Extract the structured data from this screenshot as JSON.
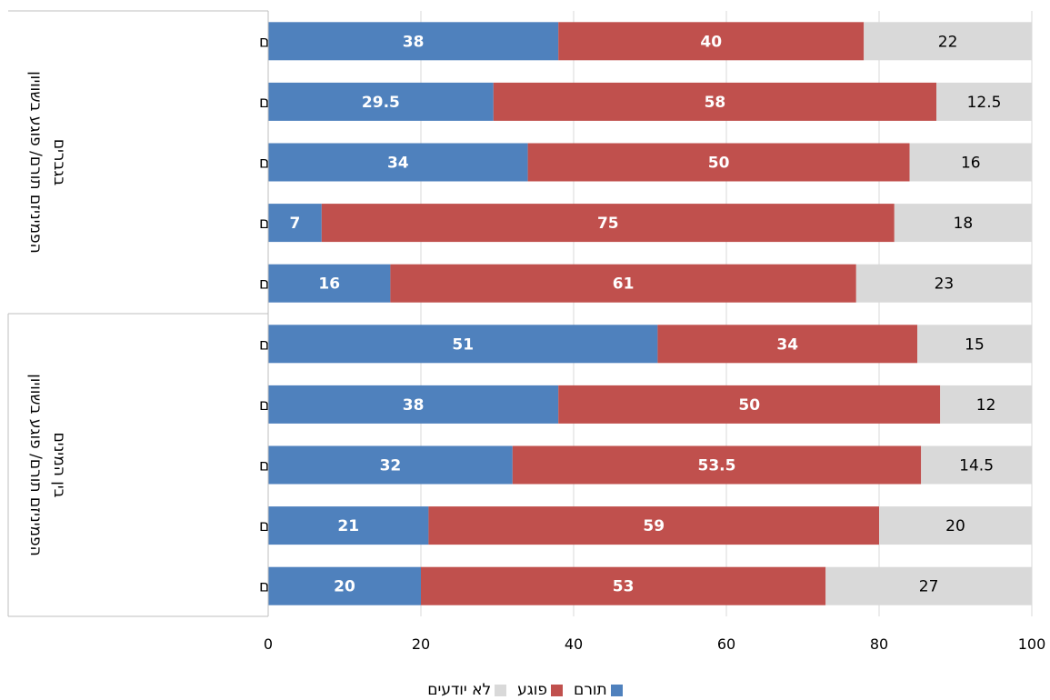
{
  "chart_data": {
    "type": "bar",
    "orientation": "horizontal",
    "stacked": true,
    "xlim": [
      0,
      100
    ],
    "xticks": [
      0,
      20,
      40,
      60,
      80,
      100
    ],
    "grid": true,
    "legend_position": "bottom",
    "groups": [
      {
        "label": "הפמיניזם תורם/ פוגע בשוויון בגברים",
        "categories": [
          "חילונים",
          "מסורתיים לא-דתיים",
          "מסורתיים-דתיים",
          "דתיים",
          "חרדים"
        ],
        "series": [
          {
            "name": "תורם",
            "color": "#4f81bd",
            "values": [
              38,
              29.5,
              34,
              7,
              16
            ]
          },
          {
            "name": "פוגע",
            "color": "#c0504d",
            "values": [
              40,
              58,
              50,
              75,
              61
            ]
          },
          {
            "name": "לא יודעים",
            "color": "#d9d9d9",
            "values": [
              22,
              12.5,
              16,
              18,
              23
            ]
          }
        ]
      },
      {
        "label": "הפמיניזם תורם/ פוגע בשוויון בין המינים",
        "categories": [
          "חילונים",
          "מסורתיים לא-דתיים",
          "מסורתיים-דתיים",
          "דתיים",
          "חרדים"
        ],
        "series": [
          {
            "name": "תורם",
            "color": "#4f81bd",
            "values": [
              51,
              38,
              32,
              21,
              20
            ]
          },
          {
            "name": "פוגע",
            "color": "#c0504d",
            "values": [
              34,
              50,
              53.5,
              59,
              53
            ]
          },
          {
            "name": "לא יודעים",
            "color": "#d9d9d9",
            "values": [
              15,
              12,
              14.5,
              20,
              27
            ]
          }
        ]
      }
    ],
    "legend": [
      {
        "name": "תורם",
        "color": "#4f81bd"
      },
      {
        "name": "פוגע",
        "color": "#c0504d"
      },
      {
        "name": "לא יודעים",
        "color": "#d9d9d9"
      }
    ]
  }
}
